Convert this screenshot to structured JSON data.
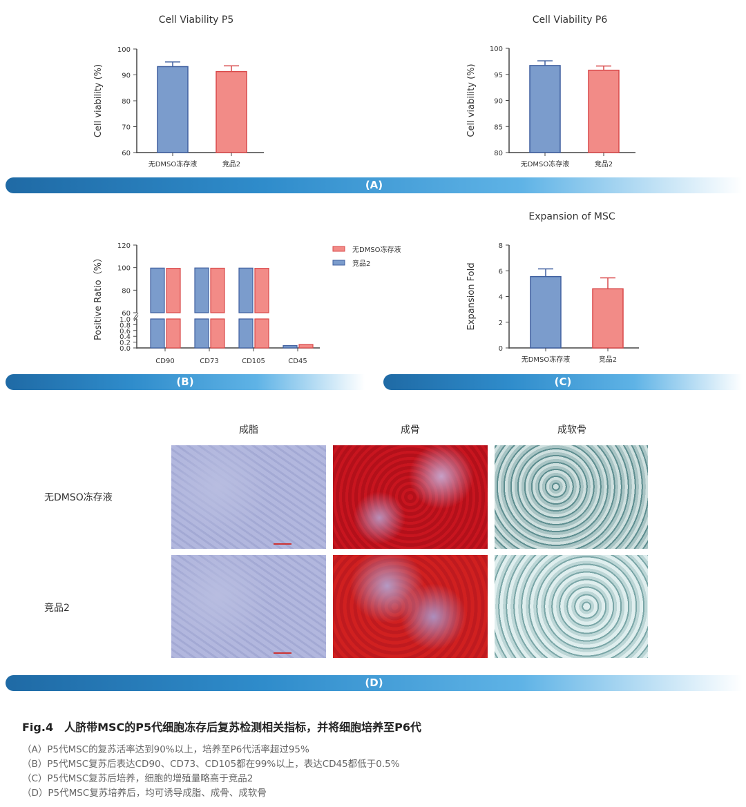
{
  "chart_data": [
    {
      "id": "p5",
      "type": "bar",
      "title": "Cell Viability P5",
      "ylabel": "Cell viability (%)",
      "xlabel": "",
      "ylim": [
        60,
        100
      ],
      "yticks": [
        60,
        70,
        80,
        90,
        100
      ],
      "categories": [
        "无DMSO冻存液",
        "竞品2"
      ],
      "values": [
        93.2,
        91.3
      ],
      "errors": [
        1.8,
        2.2
      ],
      "colors": [
        "#7b9ccc",
        "#f28b87"
      ],
      "edge": [
        "#3f5f9f",
        "#d9494a"
      ]
    },
    {
      "id": "p6",
      "type": "bar",
      "title": "Cell Viability P6",
      "ylabel": "Cell viability (%)",
      "xlabel": "",
      "ylim": [
        80,
        100
      ],
      "yticks": [
        80,
        85,
        90,
        95,
        100
      ],
      "categories": [
        "无DMSO冻存液",
        "竞品2"
      ],
      "values": [
        96.7,
        95.8
      ],
      "errors": [
        0.9,
        0.8
      ],
      "colors": [
        "#7b9ccc",
        "#f28b87"
      ],
      "edge": [
        "#3f5f9f",
        "#d9494a"
      ]
    },
    {
      "id": "markers",
      "type": "bar",
      "title": "",
      "ylabel": "Positive Ratio（%）",
      "xlabel": "",
      "axis_break": true,
      "ylim_upper": [
        60,
        120
      ],
      "yticks_upper": [
        60,
        80,
        100,
        120
      ],
      "ylim_lower": [
        0,
        1.0
      ],
      "yticks_lower": [
        "0.0",
        "0.2",
        "0.4",
        "0.6",
        "0.8",
        "1.0"
      ],
      "categories": [
        "CD90",
        "CD73",
        "CD105",
        "CD45"
      ],
      "series": [
        {
          "name": "竞品2",
          "values": [
            99.6,
            99.7,
            99.6,
            0.08
          ],
          "color": "#7b9ccc",
          "edge": "#3f5f9f"
        },
        {
          "name": "无DMSO冻存液",
          "values": [
            99.4,
            99.5,
            99.4,
            0.12
          ],
          "color": "#f28b87",
          "edge": "#d9494a"
        }
      ],
      "legend": [
        "无DMSO冻存液",
        "竞品2"
      ],
      "legend_position": "top-right"
    },
    {
      "id": "expansion",
      "type": "bar",
      "title": "Expansion of MSC",
      "ylabel": "Expansion Fold",
      "xlabel": "",
      "ylim": [
        0,
        8
      ],
      "yticks": [
        0,
        2,
        4,
        6,
        8
      ],
      "categories": [
        "无DMSO冻存液",
        "竞品2"
      ],
      "values": [
        5.55,
        4.6
      ],
      "errors": [
        0.6,
        0.85
      ],
      "colors": [
        "#7b9ccc",
        "#f28b87"
      ],
      "edge": [
        "#3f5f9f",
        "#d9494a"
      ]
    }
  ],
  "banners": {
    "a": "(A)",
    "b": "(B)",
    "c": "(C)",
    "d": "(D)"
  },
  "staining": {
    "columns": [
      "成脂",
      "成骨",
      "成软骨"
    ],
    "rows": [
      "无DMSO冻存液",
      "竞品2"
    ]
  },
  "caption": {
    "title": "Fig.4　人脐带MSC的P5代细胞冻存后复苏检测相关指标，并将细胞培养至P6代",
    "lines": [
      "（A）P5代MSC的复苏活率达到90%以上，培养至P6代活率超过95%",
      "（B）P5代MSC复苏后表达CD90、CD73、CD105都在99%以上，表达CD45都低于0.5%",
      "（C）P5代MSC复苏后培养，细胞的增殖量略高于竞品2",
      "（D）P5代MSC复苏培养后，均可诱导成脂、成骨、成软骨"
    ]
  }
}
